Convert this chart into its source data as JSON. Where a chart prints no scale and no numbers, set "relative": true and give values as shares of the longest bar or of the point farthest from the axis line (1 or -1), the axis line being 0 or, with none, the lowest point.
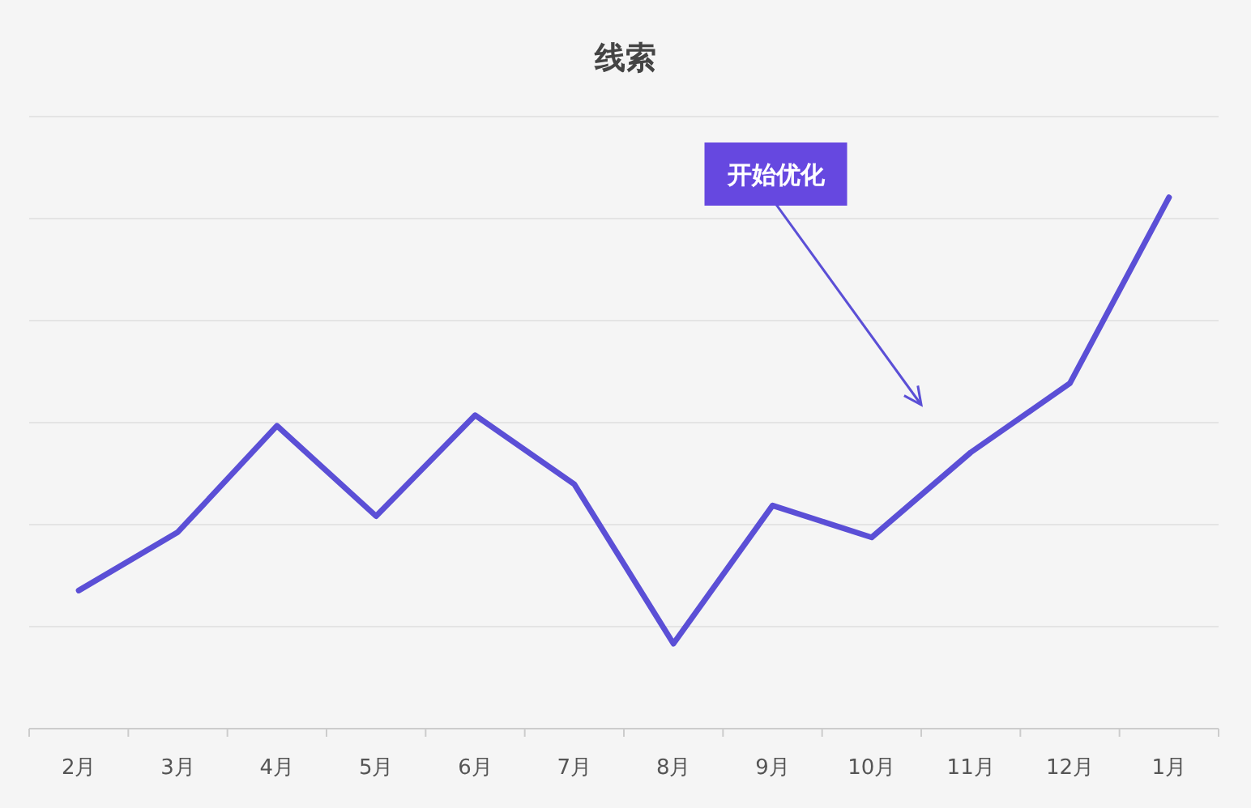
{
  "chart_data": {
    "type": "line",
    "title": "线索",
    "relative": true,
    "categories": [
      "2月",
      "3月",
      "4月",
      "5月",
      "6月",
      "7月",
      "8月",
      "9月",
      "10月",
      "11月",
      "12月",
      "1月"
    ],
    "series": [
      {
        "color": "#5b4fd6",
        "values": [
          0.26,
          0.37,
          0.57,
          0.4,
          0.59,
          0.46,
          0.16,
          0.42,
          0.36,
          0.52,
          0.65,
          1
        ]
      }
    ],
    "annotations": [
      "开始优化"
    ],
    "grid": true,
    "marker": "none",
    "line_style": "solid"
  }
}
